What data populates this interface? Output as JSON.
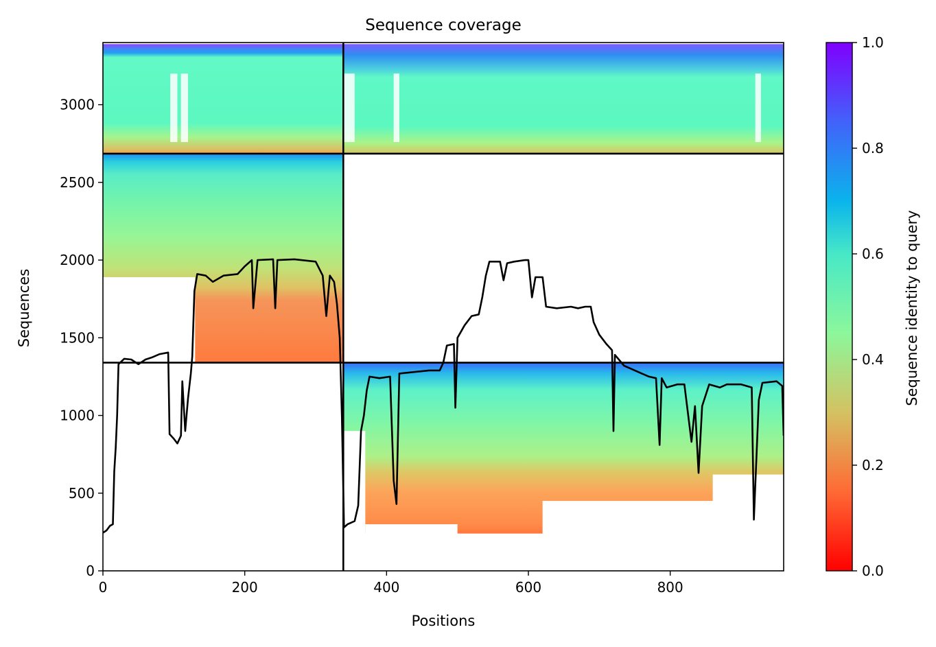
{
  "chart_data": {
    "type": "heatmap",
    "title": "Sequence coverage",
    "xlabel": "Positions",
    "ylabel": "Sequences",
    "xlim": [
      0,
      960
    ],
    "ylim": [
      0,
      3400
    ],
    "xticks": [
      0,
      200,
      400,
      600,
      800
    ],
    "yticks": [
      0,
      500,
      1000,
      1500,
      2000,
      2500,
      3000
    ],
    "grid": false,
    "colorbar": {
      "label": "Sequence identity to query",
      "colormap": "rainbow",
      "range": [
        0.0,
        1.0
      ],
      "ticks": [
        "0.0",
        "0.2",
        "0.4",
        "0.6",
        "0.8",
        "1.0"
      ]
    },
    "chain_boundary_x": 339,
    "block_boundaries_y": [
      1340,
      2685
    ],
    "msa_blocks": [
      {
        "x": [
          0,
          339
        ],
        "y": [
          2685,
          3390
        ],
        "coverage": "chain A only"
      },
      {
        "x": [
          339,
          960
        ],
        "y": [
          2685,
          3390
        ],
        "coverage": "chain B only"
      },
      {
        "x": [
          0,
          339
        ],
        "y": [
          1340,
          2685
        ],
        "coverage": "chain A only"
      },
      {
        "x": [
          339,
          960
        ],
        "y": [
          0,
          1340
        ],
        "coverage": "chain B only"
      }
    ],
    "coverage_line": {
      "color": "#000000",
      "points": [
        [
          0,
          245
        ],
        [
          5,
          260
        ],
        [
          10,
          290
        ],
        [
          14,
          300
        ],
        [
          16,
          640
        ],
        [
          18,
          790
        ],
        [
          20,
          1000
        ],
        [
          22,
          1330
        ],
        [
          30,
          1365
        ],
        [
          40,
          1360
        ],
        [
          50,
          1330
        ],
        [
          60,
          1360
        ],
        [
          70,
          1375
        ],
        [
          80,
          1395
        ],
        [
          92,
          1405
        ],
        [
          94,
          880
        ],
        [
          100,
          850
        ],
        [
          105,
          820
        ],
        [
          110,
          870
        ],
        [
          112,
          1220
        ],
        [
          116,
          900
        ],
        [
          120,
          1110
        ],
        [
          124,
          1270
        ],
        [
          126,
          1380
        ],
        [
          129,
          1800
        ],
        [
          133,
          1910
        ],
        [
          145,
          1900
        ],
        [
          155,
          1860
        ],
        [
          170,
          1900
        ],
        [
          190,
          1910
        ],
        [
          200,
          1960
        ],
        [
          210,
          2000
        ],
        [
          212,
          1690
        ],
        [
          218,
          2000
        ],
        [
          240,
          2005
        ],
        [
          243,
          1690
        ],
        [
          246,
          2000
        ],
        [
          270,
          2005
        ],
        [
          280,
          2000
        ],
        [
          300,
          1990
        ],
        [
          310,
          1900
        ],
        [
          315,
          1640
        ],
        [
          320,
          1900
        ],
        [
          326,
          1860
        ],
        [
          330,
          1720
        ],
        [
          334,
          1500
        ],
        [
          337,
          1000
        ],
        [
          340,
          280
        ],
        [
          345,
          300
        ],
        [
          355,
          320
        ],
        [
          360,
          420
        ],
        [
          364,
          900
        ],
        [
          368,
          1000
        ],
        [
          372,
          1160
        ],
        [
          376,
          1250
        ],
        [
          390,
          1240
        ],
        [
          405,
          1250
        ],
        [
          410,
          580
        ],
        [
          414,
          430
        ],
        [
          418,
          1270
        ],
        [
          440,
          1280
        ],
        [
          460,
          1290
        ],
        [
          475,
          1290
        ],
        [
          480,
          1340
        ],
        [
          485,
          1450
        ],
        [
          495,
          1460
        ],
        [
          497,
          1050
        ],
        [
          500,
          1500
        ],
        [
          510,
          1580
        ],
        [
          520,
          1640
        ],
        [
          530,
          1650
        ],
        [
          535,
          1760
        ],
        [
          540,
          1900
        ],
        [
          545,
          1990
        ],
        [
          560,
          1990
        ],
        [
          565,
          1870
        ],
        [
          570,
          1980
        ],
        [
          580,
          1990
        ],
        [
          595,
          2000
        ],
        [
          600,
          2000
        ],
        [
          605,
          1760
        ],
        [
          610,
          1890
        ],
        [
          620,
          1890
        ],
        [
          625,
          1700
        ],
        [
          640,
          1690
        ],
        [
          660,
          1700
        ],
        [
          670,
          1690
        ],
        [
          680,
          1700
        ],
        [
          688,
          1700
        ],
        [
          692,
          1600
        ],
        [
          700,
          1520
        ],
        [
          710,
          1460
        ],
        [
          718,
          1420
        ],
        [
          720,
          900
        ],
        [
          722,
          1390
        ],
        [
          735,
          1320
        ],
        [
          745,
          1300
        ],
        [
          760,
          1270
        ],
        [
          770,
          1250
        ],
        [
          780,
          1240
        ],
        [
          785,
          810
        ],
        [
          788,
          1240
        ],
        [
          795,
          1180
        ],
        [
          810,
          1200
        ],
        [
          820,
          1200
        ],
        [
          830,
          830
        ],
        [
          835,
          1060
        ],
        [
          840,
          630
        ],
        [
          845,
          1060
        ],
        [
          855,
          1200
        ],
        [
          870,
          1180
        ],
        [
          880,
          1200
        ],
        [
          900,
          1200
        ],
        [
          915,
          1180
        ],
        [
          918,
          330
        ],
        [
          925,
          1100
        ],
        [
          930,
          1210
        ],
        [
          950,
          1220
        ],
        [
          958,
          1190
        ],
        [
          960,
          870
        ]
      ]
    }
  }
}
